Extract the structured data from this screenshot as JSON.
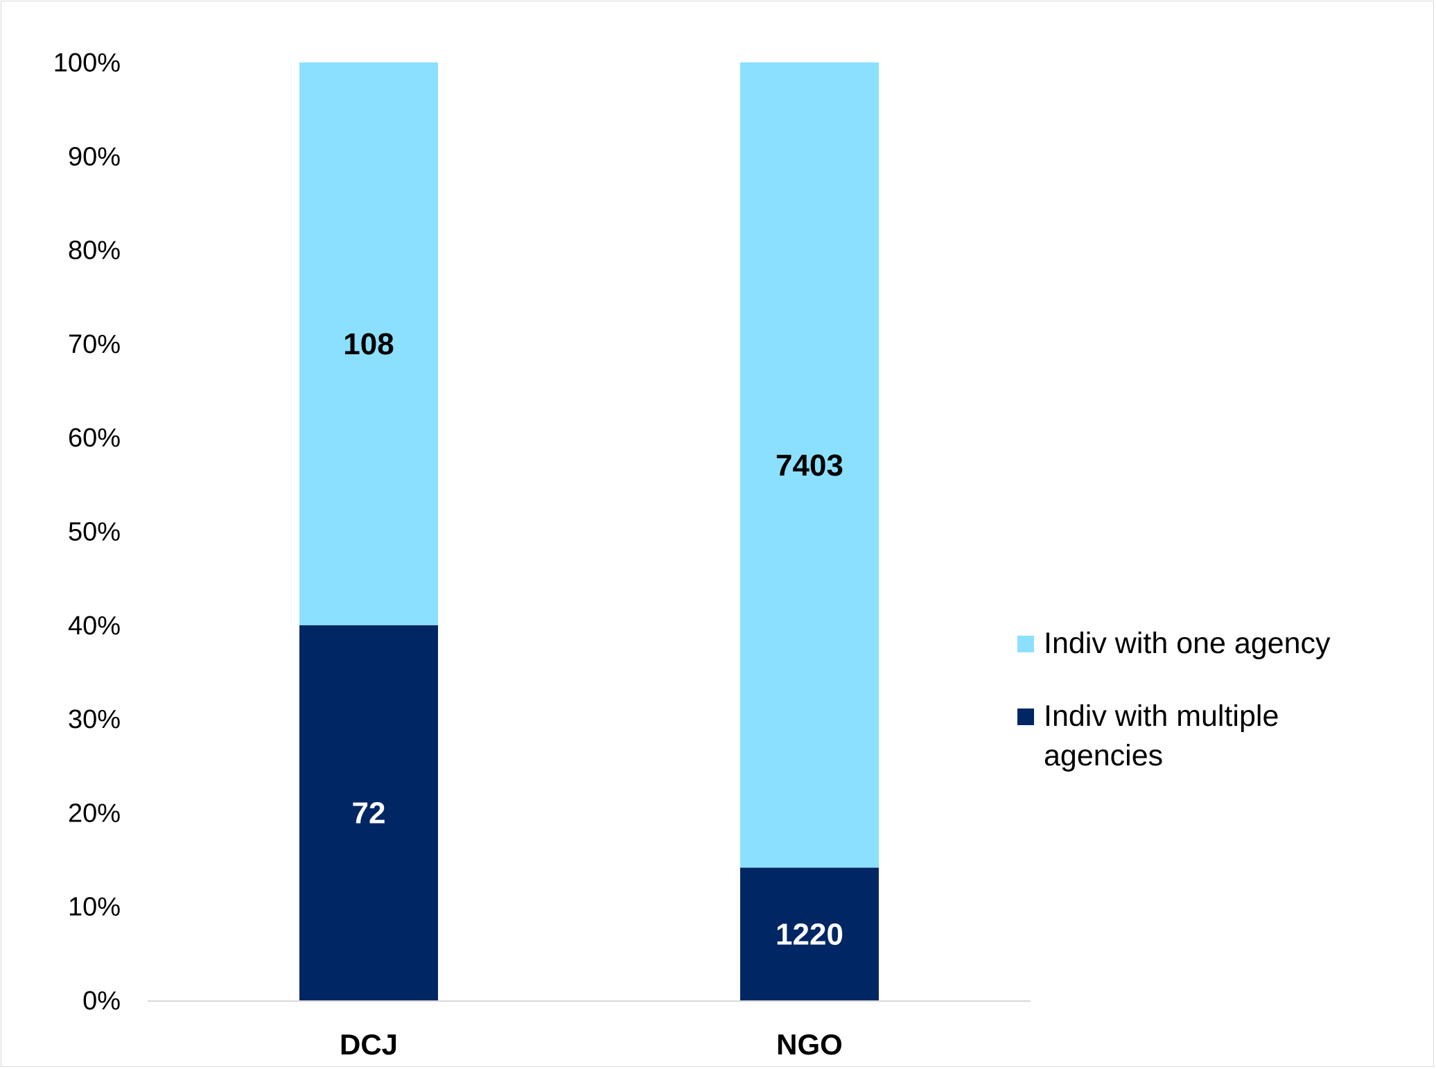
{
  "chart_data": {
    "type": "bar",
    "stacked": "percent",
    "categories": [
      "DCJ",
      "NGO"
    ],
    "series": [
      {
        "name": "Indiv with multiple agencies",
        "values": [
          72,
          1220
        ],
        "color": "#002664",
        "label_color": "#ffffff"
      },
      {
        "name": "Indiv with one agency",
        "values": [
          108,
          7403
        ],
        "color": "#8ce0ff",
        "label_color": "#000000"
      }
    ],
    "ylim": [
      0,
      100
    ],
    "yticks": [
      "0%",
      "10%",
      "20%",
      "30%",
      "40%",
      "50%",
      "60%",
      "70%",
      "80%",
      "90%",
      "100%"
    ],
    "grid": false,
    "legend_position": "right",
    "legend_order": [
      1,
      0
    ]
  }
}
